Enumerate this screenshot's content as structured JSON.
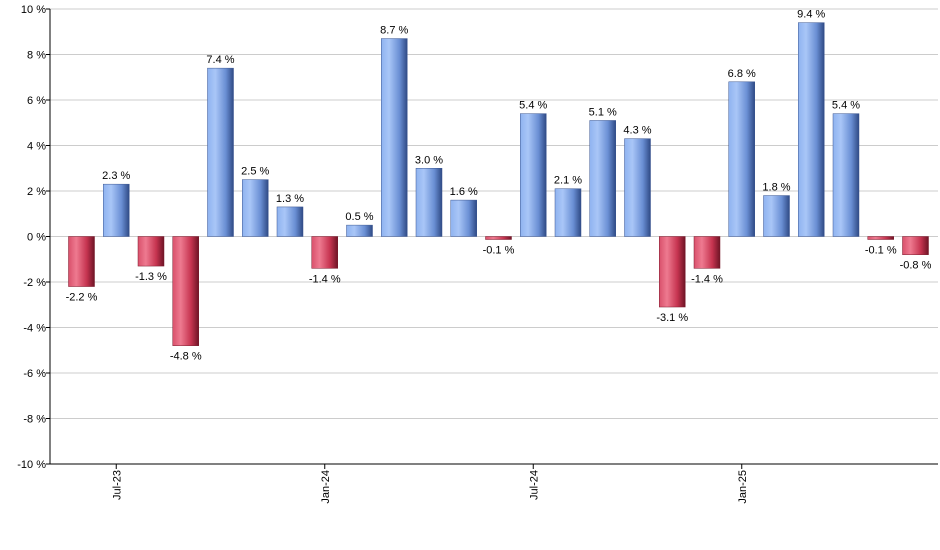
{
  "chart_data": {
    "type": "bar",
    "grid": true,
    "ylim": [
      -10,
      10
    ],
    "yticks": [
      10,
      8,
      6,
      4,
      2,
      0,
      -2,
      -4,
      -6,
      -8,
      -10
    ],
    "ytick_labels": [
      "10 %",
      "8 %",
      "6 %",
      "4 %",
      "2 %",
      "0 %",
      "-2 %",
      "-4 %",
      "-6 %",
      "-8 %",
      "-10 %"
    ],
    "xtick_labels": [
      {
        "label": "Jul-23",
        "index": 1
      },
      {
        "label": "Jan-24",
        "index": 7
      },
      {
        "label": "Jul-24",
        "index": 13
      },
      {
        "label": "Jan-25",
        "index": 19
      }
    ],
    "values": [
      -2.2,
      2.3,
      -1.3,
      -4.8,
      7.4,
      2.5,
      1.3,
      -1.4,
      0.5,
      8.7,
      3.0,
      1.6,
      -0.1,
      5.4,
      2.1,
      5.1,
      4.3,
      -3.1,
      -1.4,
      6.8,
      1.8,
      9.4,
      5.4,
      -0.1,
      -0.8
    ],
    "labels": [
      "-2.2 %",
      "2.3 %",
      "-1.3 %",
      "-4.8 %",
      "7.4 %",
      "2.5 %",
      "1.3 %",
      "-1.4 %",
      "0.5 %",
      "8.7 %",
      "3.0 %",
      "1.6 %",
      "-0.1 %",
      "5.4 %",
      "2.1 %",
      "5.1 %",
      "4.3 %",
      "-3.1 %",
      "-1.4 %",
      "6.8 %",
      "1.8 %",
      "9.4 %",
      "5.4 %",
      "-0.1 %",
      "-0.8 %"
    ],
    "colors": {
      "positive": "#6f95d8",
      "negative": "#c8344f",
      "grid": "#cccccc",
      "axis": "#000000"
    }
  }
}
